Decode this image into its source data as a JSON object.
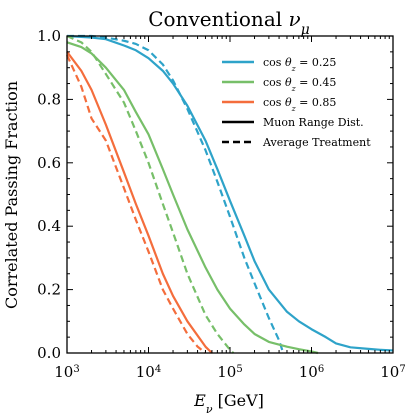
{
  "chart_data": {
    "type": "line",
    "title": "Conventional νμ",
    "xlabel": "Eν [GeV]",
    "ylabel": "Correlated Passing Fraction",
    "xscale": "log",
    "xlim": [
      1000,
      10000000
    ],
    "ylim": [
      0.0,
      1.0
    ],
    "x_ticks": [
      1000,
      10000,
      100000,
      1000000,
      10000000
    ],
    "x_tick_labels": [
      {
        "base": "10",
        "exp": "3"
      },
      {
        "base": "10",
        "exp": "4"
      },
      {
        "base": "10",
        "exp": "5"
      },
      {
        "base": "10",
        "exp": "6"
      },
      {
        "base": "10",
        "exp": "7"
      }
    ],
    "y_ticks": [
      0.0,
      0.2,
      0.4,
      0.6,
      0.8,
      1.0
    ],
    "y_tick_labels": [
      "0.0",
      "0.2",
      "0.4",
      "0.6",
      "0.8",
      "1.0"
    ],
    "grid": false,
    "legend_position": "top-right",
    "legend": [
      {
        "label": "cos θz = 0.25",
        "color": "#2ea3c9",
        "style": "solid"
      },
      {
        "label": "cos θz = 0.45",
        "color": "#77bf69",
        "style": "solid"
      },
      {
        "label": "cos θz = 0.85",
        "color": "#f46d3c",
        "style": "solid"
      },
      {
        "label": "Muon Range Dist.",
        "color": "#000000",
        "style": "solid"
      },
      {
        "label": "Average Treatment",
        "color": "#000000",
        "style": "dashed"
      }
    ],
    "series": [
      {
        "color": "#2ea3c9",
        "style": "solid",
        "x": [
          1000,
          2000,
          3000,
          5000,
          7000,
          10000,
          15000,
          20000,
          30000,
          50000,
          70000,
          100000,
          150000,
          200000,
          300000,
          500000,
          700000,
          1000000,
          1500000,
          2000000,
          3000000,
          5000000,
          7000000,
          10000000
        ],
        "y": [
          1.0,
          0.995,
          0.99,
          0.97,
          0.955,
          0.93,
          0.89,
          0.85,
          0.78,
          0.67,
          0.58,
          0.48,
          0.37,
          0.29,
          0.2,
          0.13,
          0.1,
          0.075,
          0.05,
          0.03,
          0.018,
          0.013,
          0.01,
          0.008
        ]
      },
      {
        "color": "#2ea3c9",
        "style": "dashed",
        "x": [
          1000,
          2000,
          3000,
          5000,
          7000,
          10000,
          15000,
          20000,
          30000,
          50000,
          70000,
          100000,
          150000,
          200000,
          300000,
          400000,
          450000
        ],
        "y": [
          1.0,
          1.0,
          0.995,
          0.985,
          0.975,
          0.955,
          0.91,
          0.86,
          0.77,
          0.64,
          0.54,
          0.43,
          0.3,
          0.22,
          0.11,
          0.04,
          0.0
        ]
      },
      {
        "color": "#77bf69",
        "style": "solid",
        "x": [
          1000,
          1500,
          2000,
          3000,
          5000,
          7000,
          10000,
          15000,
          20000,
          30000,
          50000,
          70000,
          100000,
          150000,
          200000,
          300000,
          500000,
          700000,
          1000000,
          1200000
        ],
        "y": [
          0.98,
          0.965,
          0.945,
          0.9,
          0.83,
          0.76,
          0.69,
          0.58,
          0.5,
          0.39,
          0.27,
          0.2,
          0.14,
          0.09,
          0.06,
          0.035,
          0.02,
          0.012,
          0.005,
          0.0
        ]
      },
      {
        "color": "#77bf69",
        "style": "dashed",
        "x": [
          1000,
          1500,
          2000,
          3000,
          5000,
          7000,
          10000,
          15000,
          20000,
          30000,
          50000,
          70000,
          100000,
          110000
        ],
        "y": [
          1.0,
          0.98,
          0.95,
          0.88,
          0.79,
          0.7,
          0.6,
          0.47,
          0.38,
          0.25,
          0.12,
          0.06,
          0.01,
          0.0
        ]
      },
      {
        "color": "#f46d3c",
        "style": "solid",
        "x": [
          1000,
          1500,
          2000,
          3000,
          5000,
          7000,
          10000,
          15000,
          20000,
          30000,
          50000,
          60000
        ],
        "y": [
          0.95,
          0.89,
          0.83,
          0.72,
          0.57,
          0.47,
          0.37,
          0.25,
          0.18,
          0.1,
          0.02,
          0.0
        ]
      },
      {
        "color": "#f46d3c",
        "style": "dashed",
        "x": [
          1000,
          1500,
          2000,
          3000,
          5000,
          7000,
          10000,
          15000,
          20000,
          30000,
          40000,
          50000
        ],
        "y": [
          0.94,
          0.84,
          0.74,
          0.67,
          0.52,
          0.42,
          0.32,
          0.2,
          0.14,
          0.06,
          0.02,
          0.0
        ]
      }
    ]
  }
}
